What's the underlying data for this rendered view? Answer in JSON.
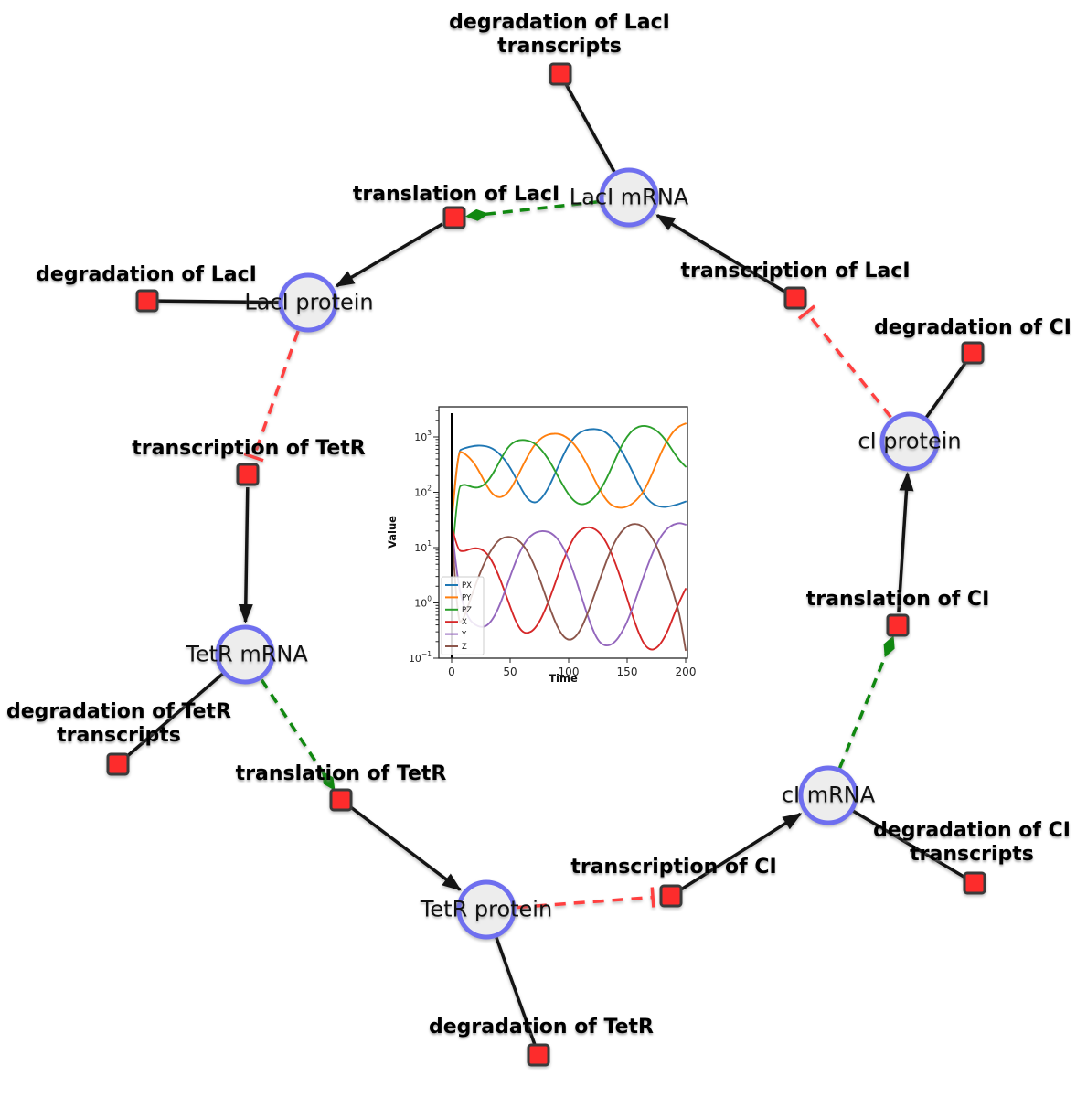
{
  "figure": {
    "background": "#ffffff"
  },
  "network": {
    "colors": {
      "species_fill": "#ededed",
      "species_border": "#6f6fef",
      "reaction_fill": "#fd2c2c",
      "reaction_border": "#3b3b3b",
      "edge_black": "#141414",
      "edge_modifier_green": "#108810",
      "edge_inhibition_red": "#ff4040"
    },
    "species": [
      {
        "id": "laci-mrna",
        "label": "LacI mRNA"
      },
      {
        "id": "laci-protein",
        "label": "LacI protein"
      },
      {
        "id": "tetr-mrna",
        "label": "TetR mRNA"
      },
      {
        "id": "tetr-protein",
        "label": "TetR protein"
      },
      {
        "id": "ci-mrna",
        "label": "cI mRNA"
      },
      {
        "id": "ci-protein",
        "label": "cI protein"
      }
    ],
    "reactions": [
      {
        "id": "deg-laci-transcripts",
        "label": "degradation of LacI transcripts"
      },
      {
        "id": "translation-laci",
        "label": "translation of LacI"
      },
      {
        "id": "deg-laci",
        "label": "degradation of LacI"
      },
      {
        "id": "transcription-laci",
        "label": "transcription of LacI"
      },
      {
        "id": "deg-ci",
        "label": "degradation of CI"
      },
      {
        "id": "transcription-tetr",
        "label": "transcription of TetR"
      },
      {
        "id": "deg-tetr-transcripts",
        "label": "degradation of TetR transcripts"
      },
      {
        "id": "translation-tetr",
        "label": "translation of TetR"
      },
      {
        "id": "deg-tetr",
        "label": "degradation of TetR"
      },
      {
        "id": "transcription-ci",
        "label": "transcription of CI"
      },
      {
        "id": "deg-ci-transcripts",
        "label": "degradation of CI transcripts"
      },
      {
        "id": "translation-ci",
        "label": "translation of CI"
      }
    ],
    "edges": [
      {
        "from": "LacI mRNA",
        "to": "degradation of LacI transcripts",
        "type": "consumption",
        "style": "solid-black"
      },
      {
        "from": "LacI protein",
        "to": "degradation of LacI",
        "type": "consumption",
        "style": "solid-black"
      },
      {
        "from": "TetR mRNA",
        "to": "degradation of TetR transcripts",
        "type": "consumption",
        "style": "solid-black"
      },
      {
        "from": "TetR protein",
        "to": "degradation of TetR",
        "type": "consumption",
        "style": "solid-black"
      },
      {
        "from": "cI mRNA",
        "to": "degradation of CI transcripts",
        "type": "consumption",
        "style": "solid-black"
      },
      {
        "from": "cI protein",
        "to": "degradation of CI",
        "type": "consumption",
        "style": "solid-black"
      },
      {
        "from": "translation of LacI",
        "to": "LacI protein",
        "type": "production",
        "style": "solid-black-arrow"
      },
      {
        "from": "transcription of LacI",
        "to": "LacI mRNA",
        "type": "production",
        "style": "solid-black-arrow"
      },
      {
        "from": "transcription of TetR",
        "to": "TetR mRNA",
        "type": "production",
        "style": "solid-black-arrow"
      },
      {
        "from": "translation of TetR",
        "to": "TetR protein",
        "type": "production",
        "style": "solid-black-arrow"
      },
      {
        "from": "transcription of CI",
        "to": "cI mRNA",
        "type": "production",
        "style": "solid-black-arrow"
      },
      {
        "from": "translation of CI",
        "to": "cI protein",
        "type": "production",
        "style": "solid-black-arrow"
      },
      {
        "from": "LacI mRNA",
        "to": "translation of LacI",
        "type": "modifier",
        "style": "dashed-green-arrow"
      },
      {
        "from": "TetR mRNA",
        "to": "translation of TetR",
        "type": "modifier",
        "style": "dashed-green-arrow"
      },
      {
        "from": "cI mRNA",
        "to": "translation of CI",
        "type": "modifier",
        "style": "dashed-green-arrow"
      },
      {
        "from": "LacI protein",
        "to": "transcription of TetR",
        "type": "inhibition",
        "style": "dashed-red-tbar"
      },
      {
        "from": "TetR protein",
        "to": "transcription of CI",
        "type": "inhibition",
        "style": "dashed-red-tbar"
      },
      {
        "from": "cI protein",
        "to": "transcription of LacI",
        "type": "inhibition",
        "style": "dashed-red-tbar"
      }
    ]
  },
  "chart_data": {
    "type": "line",
    "title": "",
    "xlabel": "Time",
    "ylabel": "Value",
    "x_range": [
      0,
      200
    ],
    "x_ticks": [
      0,
      50,
      100,
      150,
      200
    ],
    "y_scale": "log",
    "y_tick_exponents": [
      -1,
      0,
      1,
      2,
      3
    ],
    "y_range_exponents": [
      -1,
      3.55
    ],
    "grid": false,
    "legend_position": "lower left",
    "legend_entries": [
      "PX",
      "PY",
      "PZ",
      "X",
      "Y",
      "Z"
    ],
    "annotations": [
      {
        "type": "vline",
        "x": 0,
        "color": "#000000"
      }
    ],
    "x": [
      0,
      5,
      10,
      15,
      20,
      25,
      30,
      35,
      40,
      45,
      50,
      55,
      60,
      65,
      70,
      75,
      80,
      85,
      90,
      95,
      100,
      105,
      110,
      115,
      120,
      125,
      130,
      135,
      140,
      145,
      150,
      155,
      160,
      165,
      170,
      175,
      180,
      185,
      190,
      195,
      200
    ],
    "series": [
      {
        "name": "PX",
        "color": "#1f77b4",
        "values": [
          30,
          550,
          620,
          660,
          690,
          700,
          680,
          620,
          520,
          400,
          280,
          180,
          110,
          75,
          64,
          70,
          95,
          150,
          260,
          450,
          720,
          1000,
          1220,
          1350,
          1390,
          1380,
          1280,
          1080,
          820,
          570,
          370,
          225,
          135,
          88,
          66,
          57,
          54,
          55,
          58,
          62,
          68
        ]
      },
      {
        "name": "PY",
        "color": "#ff7f0e",
        "values": [
          25,
          560,
          520,
          430,
          320,
          210,
          130,
          92,
          80,
          86,
          110,
          170,
          280,
          450,
          680,
          900,
          1060,
          1140,
          1150,
          1080,
          930,
          730,
          520,
          340,
          210,
          128,
          84,
          62,
          54,
          52,
          55,
          63,
          80,
          112,
          185,
          330,
          580,
          920,
          1300,
          1600,
          1750
        ]
      },
      {
        "name": "PZ",
        "color": "#2ca02c",
        "values": [
          5,
          120,
          140,
          130,
          120,
          125,
          150,
          210,
          330,
          520,
          720,
          850,
          890,
          870,
          790,
          650,
          480,
          330,
          210,
          135,
          90,
          68,
          60,
          62,
          72,
          95,
          140,
          230,
          400,
          680,
          1020,
          1350,
          1550,
          1600,
          1520,
          1320,
          1050,
          760,
          520,
          370,
          290
        ]
      },
      {
        "name": "X",
        "color": "#d62728",
        "values": [
          25,
          9,
          8.5,
          9.3,
          9.8,
          9.5,
          8,
          5.5,
          3.2,
          1.7,
          0.85,
          0.45,
          0.3,
          0.28,
          0.32,
          0.45,
          0.75,
          1.4,
          2.8,
          5.5,
          10,
          16,
          21,
          23.5,
          23,
          20,
          15,
          9.5,
          5.2,
          2.6,
          1.2,
          0.55,
          0.28,
          0.17,
          0.14,
          0.15,
          0.2,
          0.32,
          0.6,
          1.1,
          1.8
        ]
      },
      {
        "name": "Y",
        "color": "#9467bd",
        "values": [
          25,
          2.5,
          0.9,
          0.5,
          0.4,
          0.36,
          0.38,
          0.5,
          0.8,
          1.5,
          3,
          5.8,
          10,
          14.5,
          18,
          19.8,
          20,
          18.5,
          15,
          10.5,
          6.2,
          3.2,
          1.5,
          0.7,
          0.35,
          0.21,
          0.17,
          0.17,
          0.2,
          0.28,
          0.45,
          0.85,
          1.7,
          3.4,
          6.5,
          11.5,
          17.5,
          23,
          26.5,
          28,
          26
        ]
      },
      {
        "name": "Z",
        "color": "#8c564b",
        "values": [
          25,
          0.4,
          0.5,
          1,
          2,
          3.8,
          6.5,
          10,
          13.5,
          15.5,
          15.8,
          14.5,
          12,
          8.5,
          5.2,
          2.8,
          1.4,
          0.7,
          0.38,
          0.25,
          0.21,
          0.23,
          0.32,
          0.55,
          1.05,
          2.1,
          4.2,
          8,
          13.5,
          19.5,
          24.5,
          27,
          26.5,
          23,
          17,
          11,
          6,
          3,
          1.4,
          0.6,
          0.14
        ]
      }
    ]
  }
}
